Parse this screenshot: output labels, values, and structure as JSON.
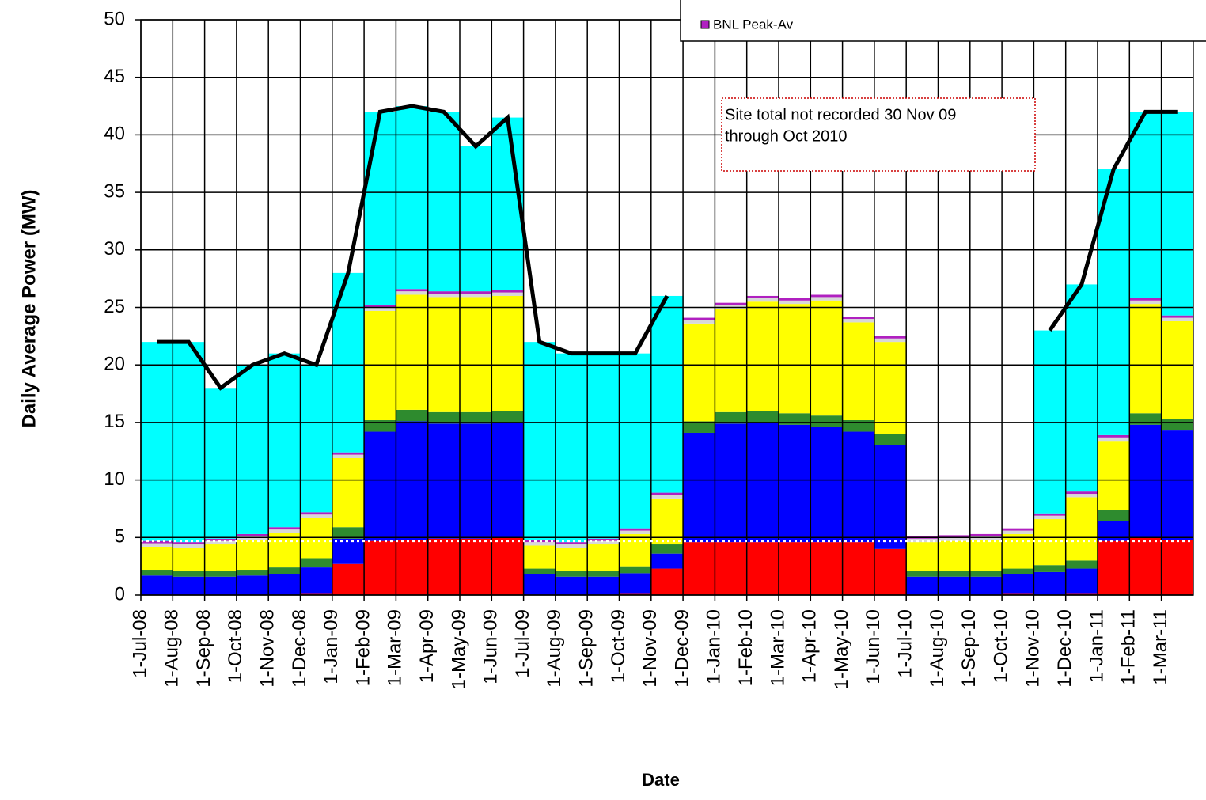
{
  "chart_data": {
    "type": "stacked-area",
    "y_label": "Daily Average Power (MW)",
    "x_label": "Date",
    "categories": [
      "1-Jul-08",
      "1-Aug-08",
      "1-Sep-08",
      "1-Oct-08",
      "1-Nov-08",
      "1-Dec-08",
      "1-Jan-09",
      "1-Feb-09",
      "1-Mar-09",
      "1-Apr-09",
      "1-May-09",
      "1-Jun-09",
      "1-Jul-09",
      "1-Aug-09",
      "1-Sep-09",
      "1-Oct-09",
      "1-Nov-09",
      "1-Dec-09",
      "1-Jan-10",
      "1-Feb-10",
      "1-Mar-10",
      "1-Apr-10",
      "1-May-10",
      "1-Jun-10",
      "1-Jul-10",
      "1-Aug-10",
      "1-Sep-10",
      "1-Oct-10",
      "1-Nov-10",
      "1-Dec-10",
      "1-Jan-11",
      "1-Feb-11",
      "1-Mar-11"
    ],
    "series": [
      {
        "color": "#ff0000",
        "values": [
          0,
          0,
          0,
          0,
          0,
          0.1,
          2.7,
          4.7,
          4.8,
          4.9,
          4.9,
          5.0,
          0,
          0,
          0,
          0.1,
          2.3,
          4.6,
          4.6,
          4.6,
          4.6,
          4.6,
          4.6,
          4.0,
          0,
          0,
          0,
          0.1,
          0,
          0.1,
          4.7,
          5.0,
          4.8
        ]
      },
      {
        "color": "#0000ff",
        "values": [
          1.7,
          1.6,
          1.6,
          1.7,
          1.8,
          2.3,
          2.2,
          9.5,
          10.3,
          10,
          10,
          10,
          1.8,
          1.6,
          1.6,
          1.8,
          1.3,
          9.5,
          10.3,
          10.4,
          10.2,
          10,
          9.6,
          9,
          1.6,
          1.6,
          1.6,
          1.7,
          2.0,
          2.2,
          1.7,
          9.8,
          9.5
        ]
      },
      {
        "color": "#2e8b2e",
        "values": [
          0.5,
          0.5,
          0.5,
          0.5,
          0.6,
          0.8,
          1,
          1,
          1,
          1,
          1,
          1,
          0.5,
          0.5,
          0.5,
          0.6,
          0.8,
          1,
          1,
          1,
          1,
          1,
          1,
          1,
          0.5,
          0.5,
          0.5,
          0.5,
          0.6,
          0.7,
          1,
          1,
          1
        ]
      },
      {
        "color": "#ffff00",
        "values": [
          2.0,
          2.0,
          2.3,
          2.6,
          3,
          3.5,
          6,
          9.5,
          10,
          10,
          10,
          10,
          2.0,
          2.0,
          2.3,
          2.8,
          4,
          8.5,
          9,
          9.5,
          9.5,
          10,
          8.5,
          8,
          2.5,
          2.6,
          2.7,
          3,
          4,
          5.5,
          6,
          9.5,
          8.5
        ]
      },
      {
        "color": "#d8d8d8",
        "values": [
          0.3,
          0.3,
          0.3,
          0.3,
          0.3,
          0.3,
          0.3,
          0.3,
          0.3,
          0.3,
          0.3,
          0.3,
          0.3,
          0.3,
          0.3,
          0.3,
          0.3,
          0.3,
          0.3,
          0.3,
          0.3,
          0.3,
          0.3,
          0.3,
          0.3,
          0.3,
          0.3,
          0.3,
          0.3,
          0.3,
          0.3,
          0.3,
          0.3
        ]
      },
      {
        "name": "BNL Peak-Av",
        "color": "#b020c0",
        "values": [
          0.2,
          0.2,
          0.2,
          0.2,
          0.2,
          0.2,
          0.2,
          0.2,
          0.2,
          0.2,
          0.2,
          0.2,
          0.2,
          0.2,
          0.2,
          0.2,
          0.2,
          0.2,
          0.2,
          0.2,
          0.2,
          0.2,
          0.2,
          0.2,
          0.2,
          0.2,
          0.2,
          0.2,
          0.2,
          0.2,
          0.2,
          0.2,
          0.2
        ]
      },
      {
        "color": "#00ffff",
        "values": [
          17.3,
          17.4,
          13.1,
          14.7,
          15.1,
          12.8,
          15.6,
          16.8,
          15.9,
          15.6,
          12.6,
          15,
          17.2,
          16.4,
          16.1,
          15.2,
          17.1,
          0,
          0,
          0,
          0,
          0,
          0,
          0,
          0,
          0,
          0,
          0,
          15.9,
          18,
          23.1,
          16.2,
          17.7
        ]
      }
    ],
    "total": {
      "color": "#000000",
      "values": [
        22,
        22,
        18,
        20,
        21,
        20,
        28,
        42,
        42.5,
        42,
        39,
        41.5,
        22,
        21,
        21,
        21,
        26,
        null,
        null,
        null,
        null,
        null,
        null,
        null,
        null,
        null,
        null,
        null,
        23,
        27,
        37,
        42,
        42
      ]
    },
    "reference_line": 4.7,
    "ylim": [
      0,
      50
    ],
    "yticks": [
      0,
      5,
      10,
      15,
      20,
      25,
      30,
      35,
      40,
      45,
      50
    ],
    "grid": true,
    "annotation": [
      "Site total not recorded 30  Nov 09",
      "through Oct 2010"
    ]
  }
}
